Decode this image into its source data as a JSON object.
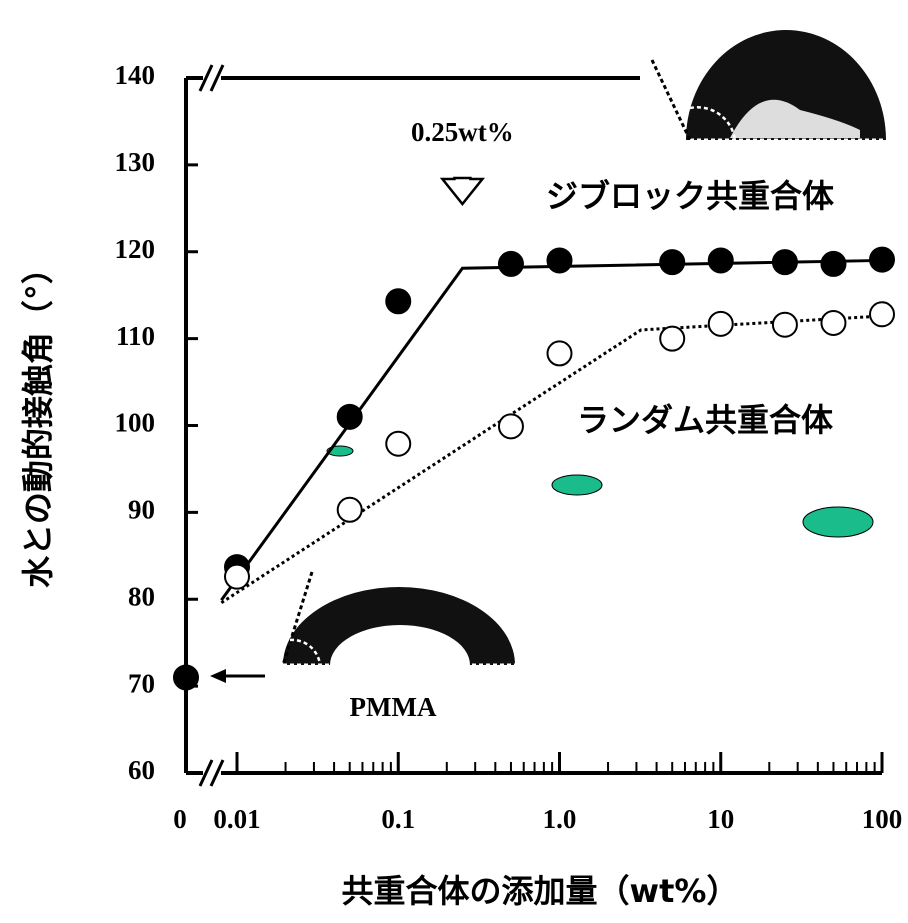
{
  "chart_data": {
    "type": "scatter",
    "y_label": "水との動的接触角（°）",
    "x_label": "共重合体の添加量（wt%）",
    "log_x": true,
    "xlim": [
      0.01,
      100
    ],
    "ylim": [
      60,
      140
    ],
    "xticks": [
      0,
      0.01,
      0.1,
      {
        "value": 1,
        "label": "1.0"
      },
      10,
      100
    ],
    "xminorticks": [
      0.02,
      0.03,
      0.04,
      0.05,
      0.06,
      0.07,
      0.08,
      0.09,
      0.2,
      0.3,
      0.4,
      0.5,
      0.6,
      0.7,
      0.8,
      0.9,
      2,
      3,
      4,
      5,
      6,
      7,
      8,
      9,
      20,
      30,
      40,
      50,
      60,
      70,
      80,
      90
    ],
    "yticks": [
      60,
      70,
      80,
      90,
      100,
      110,
      120,
      130,
      140
    ],
    "series": [
      {
        "name": "ジブロック共重合体",
        "color": "#000000",
        "filled": true,
        "x": [
          0,
          0.01,
          0.05,
          0.1,
          0.5,
          1,
          5,
          10,
          25,
          50,
          100
        ],
        "values": [
          71,
          83.7,
          101,
          114.3,
          118.6,
          119,
          118.8,
          119,
          118.8,
          118.6,
          119.1
        ]
      },
      {
        "name": "ランダム共重合体",
        "color": "#000000",
        "filled": false,
        "x": [
          0.01,
          0.05,
          0.1,
          0.5,
          1,
          5,
          10,
          25,
          50,
          100
        ],
        "values": [
          82.6,
          90.3,
          97.9,
          99.9,
          108.3,
          110,
          111.7,
          111.6,
          111.8,
          112.8
        ]
      }
    ],
    "trend_lines": [
      {
        "style": "solid",
        "x": [
          0.008,
          0.25,
          100
        ],
        "values": [
          79.9,
          118.1,
          119
        ]
      },
      {
        "style": "dotted",
        "x": [
          0.008,
          3.2,
          100
        ],
        "values": [
          79.6,
          111,
          112.6
        ]
      }
    ],
    "annotations": [
      {
        "text": "0.25wt%",
        "x": 0.25,
        "y": 125.5
      },
      {
        "text": "PMMA"
      }
    ]
  }
}
